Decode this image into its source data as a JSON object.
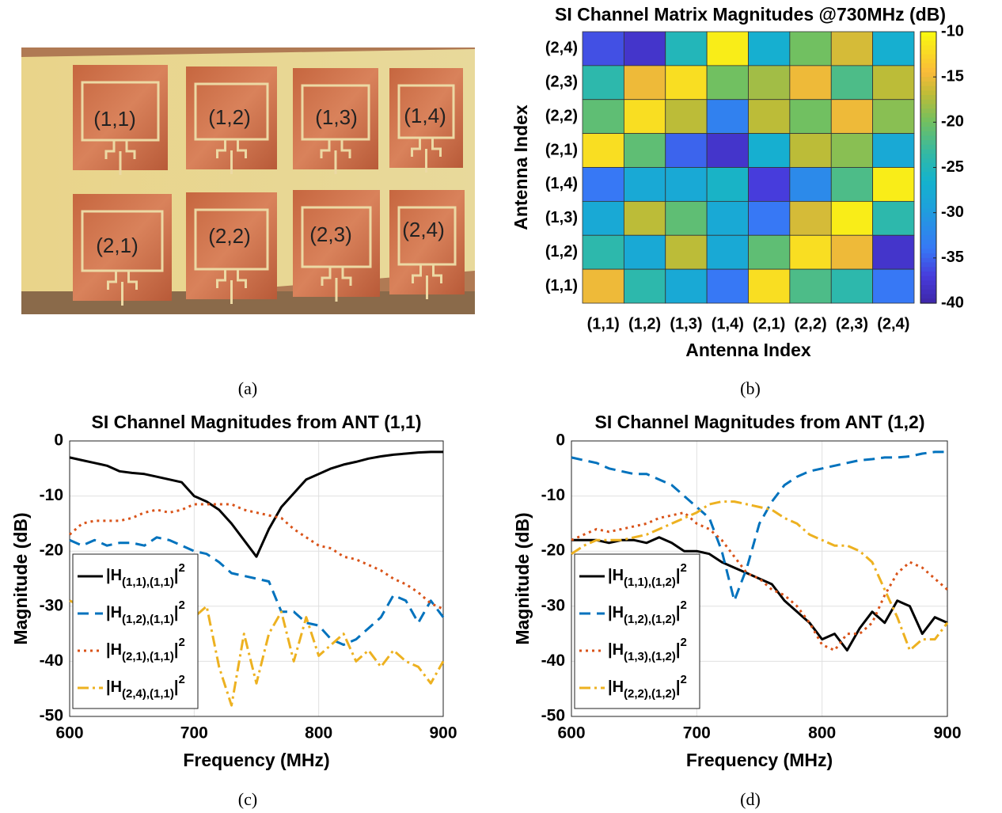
{
  "photo": {
    "antenna_labels": [
      "(1,1)",
      "(1,2)",
      "(1,3)",
      "(1,4)",
      "(2,1)",
      "(2,2)",
      "(2,3)",
      "(2,4)"
    ],
    "caption": "(a)"
  },
  "chart_data": [
    {
      "type": "heatmap",
      "title": "SI Channel Matrix Magnitudes @730MHz (dB)",
      "caption": "(b)",
      "xlabel": "Antenna Index",
      "ylabel": "Antenna Index",
      "x_categories": [
        "(1,1)",
        "(1,2)",
        "(1,3)",
        "(1,4)",
        "(2,1)",
        "(2,2)",
        "(2,3)",
        "(2,4)"
      ],
      "y_categories": [
        "(2,4)",
        "(2,3)",
        "(2,2)",
        "(2,1)",
        "(1,4)",
        "(1,3)",
        "(1,2)",
        "(1,1)"
      ],
      "values": [
        [
          -36,
          -38,
          -25,
          -11,
          -27,
          -20,
          -16,
          -27
        ],
        [
          -24,
          -15,
          -12,
          -20,
          -18,
          -15,
          -22,
          -17
        ],
        [
          -21,
          -12,
          -17,
          -33,
          -17,
          -20,
          -15,
          -19
        ],
        [
          -12,
          -21,
          -35,
          -38,
          -27,
          -17,
          -19,
          -28
        ],
        [
          -34,
          -28,
          -28,
          -26,
          -37,
          -32,
          -22,
          -11
        ],
        [
          -28,
          -17,
          -21,
          -28,
          -34,
          -16,
          -11,
          -24
        ],
        [
          -24,
          -28,
          -17,
          -28,
          -21,
          -12,
          -15,
          -38
        ],
        [
          -15,
          -24,
          -28,
          -34,
          -12,
          -22,
          -24,
          -34
        ]
      ],
      "colormap": "parula",
      "clim": [
        -40,
        -10
      ],
      "cticks": [
        -10,
        -15,
        -20,
        -25,
        -30,
        -35,
        -40
      ]
    },
    {
      "type": "line",
      "title": "SI Channel Magnitudes from ANT (1,1)",
      "caption": "(c)",
      "xlabel": "Frequency (MHz)",
      "ylabel": "Magnitude (dB)",
      "x": [
        600,
        610,
        620,
        630,
        640,
        650,
        660,
        670,
        680,
        690,
        700,
        710,
        720,
        730,
        740,
        750,
        760,
        770,
        780,
        790,
        800,
        810,
        820,
        830,
        840,
        850,
        860,
        870,
        880,
        890,
        900
      ],
      "xlim": [
        600,
        900
      ],
      "xticks": [
        600,
        700,
        800,
        900
      ],
      "ylim": [
        -50,
        0
      ],
      "yticks": [
        0,
        -10,
        -20,
        -30,
        -40,
        -50
      ],
      "grid": true,
      "legend": "lower left",
      "series": [
        {
          "name": "|H(1,1),(1,1)|2",
          "color": "#000000",
          "style": "solid",
          "values": [
            -3,
            -3.5,
            -4,
            -4.5,
            -5.5,
            -5.8,
            -6,
            -6.5,
            -7,
            -7.5,
            -10,
            -11,
            -12.5,
            -15,
            -18,
            -21,
            -16,
            -12,
            -9.5,
            -7,
            -6,
            -5,
            -4.3,
            -3.8,
            -3.2,
            -2.8,
            -2.5,
            -2.3,
            -2.1,
            -2,
            -2
          ]
        },
        {
          "name": "|H(1,2),(1,1)|2",
          "color": "#0072bd",
          "style": "dashed",
          "values": [
            -18,
            -19,
            -18,
            -19,
            -18.5,
            -18.5,
            -19,
            -17.5,
            -18,
            -19,
            -20,
            -20.5,
            -22,
            -24,
            -24.5,
            -25,
            -25.5,
            -31,
            -31,
            -33,
            -33.5,
            -36,
            -37,
            -36,
            -34,
            -32,
            -28,
            -29,
            -33,
            -29,
            -32
          ]
        },
        {
          "name": "|H(2,1),(1,1)|2",
          "color": "#d95319",
          "style": "dotted",
          "values": [
            -17,
            -15,
            -14.5,
            -14.5,
            -14.5,
            -14,
            -13,
            -12.5,
            -13,
            -12.5,
            -11.5,
            -11.5,
            -11.5,
            -11.5,
            -12.5,
            -13,
            -13.5,
            -14,
            -16,
            -17.5,
            -19,
            -19.5,
            -21,
            -21.5,
            -22.5,
            -23.5,
            -25,
            -26,
            -27.5,
            -29.5,
            -30.5
          ]
        },
        {
          "name": "|H(2,4),(1,1)|2",
          "color": "#edb120",
          "style": "dashdot",
          "values": [
            -29,
            -30,
            -31,
            -33,
            -31,
            -33,
            -30,
            -31,
            -30,
            -34,
            -32,
            -30,
            -41,
            -48,
            -35,
            -44,
            -35,
            -31,
            -40,
            -32,
            -39,
            -37,
            -35,
            -40,
            -38,
            -41,
            -38,
            -40,
            -41,
            -44,
            -40
          ]
        }
      ]
    },
    {
      "type": "line",
      "title": "SI Channel Magnitudes from ANT (1,2)",
      "caption": "(d)",
      "xlabel": "Frequency (MHz)",
      "ylabel": "Magnitude (dB)",
      "x": [
        600,
        610,
        620,
        630,
        640,
        650,
        660,
        670,
        680,
        690,
        700,
        710,
        720,
        730,
        740,
        750,
        760,
        770,
        780,
        790,
        800,
        810,
        820,
        830,
        840,
        850,
        860,
        870,
        880,
        890,
        900
      ],
      "xlim": [
        600,
        900
      ],
      "xticks": [
        600,
        700,
        800,
        900
      ],
      "ylim": [
        -50,
        0
      ],
      "yticks": [
        0,
        -10,
        -20,
        -30,
        -40,
        -50
      ],
      "grid": true,
      "legend": "lower left",
      "series": [
        {
          "name": "|H(1,1),(1,2)|2",
          "color": "#000000",
          "style": "solid",
          "values": [
            -18,
            -18,
            -18,
            -18.5,
            -18,
            -18,
            -18.5,
            -17.5,
            -18.5,
            -20,
            -20,
            -20.5,
            -22,
            -23,
            -24,
            -25,
            -26,
            -29,
            -31,
            -33,
            -36,
            -35,
            -38,
            -34,
            -31,
            -33,
            -29,
            -30,
            -35,
            -32,
            -33
          ]
        },
        {
          "name": "|H(1,2),(1,2)|2",
          "color": "#0072bd",
          "style": "dashed",
          "values": [
            -3,
            -3.5,
            -4,
            -5,
            -5.5,
            -6,
            -6,
            -7,
            -8,
            -10,
            -12,
            -14,
            -20,
            -29,
            -23,
            -15,
            -11,
            -8,
            -6.5,
            -5.5,
            -5,
            -4.5,
            -4,
            -3.5,
            -3.3,
            -3,
            -3,
            -2.8,
            -2.3,
            -2,
            -2
          ]
        },
        {
          "name": "|H(1,3),(1,2)|2",
          "color": "#d95319",
          "style": "dotted",
          "values": [
            -18,
            -17,
            -16,
            -16.5,
            -16,
            -15.5,
            -15,
            -14,
            -13.5,
            -13,
            -15,
            -16,
            -18,
            -21,
            -24,
            -25,
            -27,
            -28,
            -30,
            -33,
            -37,
            -38,
            -35,
            -35,
            -33,
            -28,
            -24,
            -22,
            -23,
            -25,
            -27
          ]
        },
        {
          "name": "|H(2,2),(1,2)|2",
          "color": "#edb120",
          "style": "dashdot",
          "values": [
            -20.5,
            -19,
            -18,
            -18,
            -18,
            -17.5,
            -17,
            -16,
            -15,
            -14,
            -13,
            -11.5,
            -11,
            -11,
            -11.5,
            -12,
            -12.5,
            -14,
            -15,
            -17,
            -18,
            -19,
            -19,
            -20,
            -22,
            -27,
            -32,
            -38,
            -36,
            -36,
            -33
          ]
        }
      ]
    }
  ]
}
